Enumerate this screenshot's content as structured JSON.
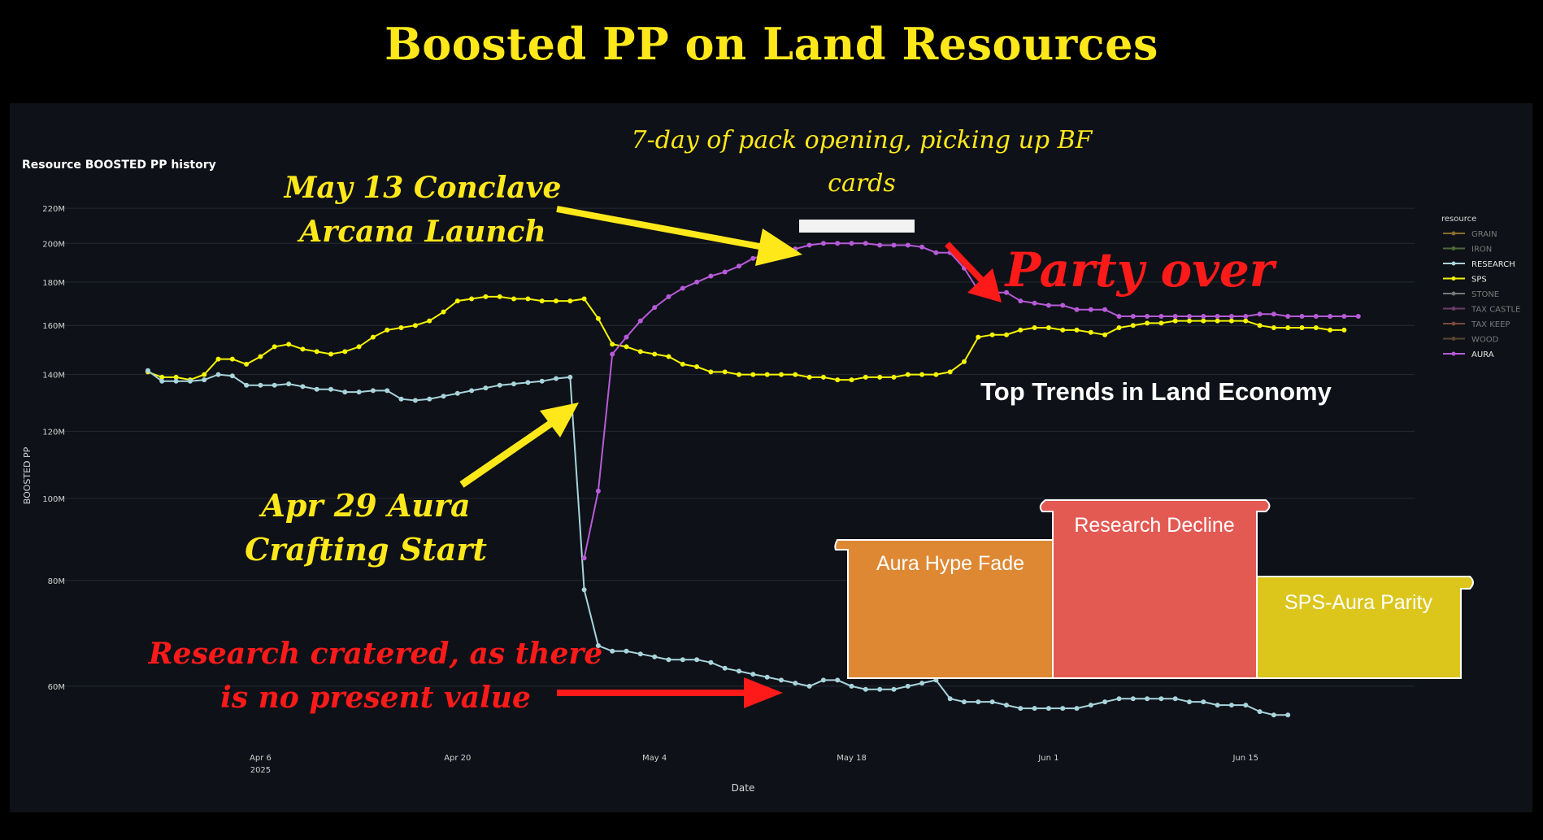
{
  "page": {
    "title": "Boosted PP on Land Resources"
  },
  "colors": {
    "page_bg": "#000000",
    "panel_bg": "#0e1117",
    "gridline": "#262a33",
    "title_yellow": "#ffe81a",
    "sps": "#f5f500",
    "research": "#a8d4dc",
    "aura": "#b65bd8",
    "annotation_red": "#ff1a1a"
  },
  "chart_data": {
    "type": "line",
    "title": "Resource BOOSTED PP history",
    "xlabel": "Date",
    "ylabel": "BOOSTED PP",
    "scale": "log",
    "yticks": [
      {
        "label": "60M",
        "value": 60
      },
      {
        "label": "80M",
        "value": 80
      },
      {
        "label": "100M",
        "value": 100
      },
      {
        "label": "120M",
        "value": 120
      },
      {
        "label": "140M",
        "value": 140
      },
      {
        "label": "160M",
        "value": 160
      },
      {
        "label": "180M",
        "value": 180
      },
      {
        "label": "200M",
        "value": 200
      },
      {
        "label": "220M",
        "value": 220
      }
    ],
    "xticks": [
      {
        "label": "Apr 6",
        "sub": "2025",
        "date": "2025-04-06"
      },
      {
        "label": "Apr 20",
        "sub": "",
        "date": "2025-04-20"
      },
      {
        "label": "May 4",
        "sub": "",
        "date": "2025-05-04"
      },
      {
        "label": "May 18",
        "sub": "",
        "date": "2025-05-18"
      },
      {
        "label": "Jun 1",
        "sub": "",
        "date": "2025-06-01"
      },
      {
        "label": "Jun 15",
        "sub": "",
        "date": "2025-06-15"
      }
    ],
    "x_range": [
      "2025-03-26",
      "2025-06-27"
    ],
    "y_range_millions": [
      53,
      228
    ],
    "grid": true,
    "legend_title": "resource",
    "legend_position": "right",
    "legend": [
      {
        "name": "GRAIN",
        "color": "#8a6d2b",
        "active": false
      },
      {
        "name": "IRON",
        "color": "#4d6a3a",
        "active": false
      },
      {
        "name": "RESEARCH",
        "color": "#a8d4dc",
        "active": true
      },
      {
        "name": "SPS",
        "color": "#f5f500",
        "active": true
      },
      {
        "name": "STONE",
        "color": "#777777",
        "active": false
      },
      {
        "name": "TAX CASTLE",
        "color": "#6a3d6a",
        "active": false
      },
      {
        "name": "TAX KEEP",
        "color": "#7a4a3a",
        "active": false
      },
      {
        "name": "WOOD",
        "color": "#5a4630",
        "active": false
      },
      {
        "name": "AURA",
        "color": "#b65bd8",
        "active": true
      }
    ],
    "series": [
      {
        "name": "SPS",
        "color": "#f5f500",
        "start_date": "2025-03-29",
        "values": [
          141,
          139,
          139,
          138,
          140,
          146,
          146,
          144,
          147,
          151,
          152,
          150,
          149,
          148,
          149,
          151,
          155,
          158,
          159,
          160,
          162,
          166,
          171,
          172,
          173,
          173,
          172,
          172,
          171,
          171,
          171,
          172,
          163,
          152,
          151,
          149,
          148,
          147,
          144,
          143,
          141,
          141,
          140,
          140,
          140,
          140,
          140,
          139,
          139,
          138,
          138,
          139,
          139,
          139,
          140,
          140,
          140,
          141,
          145,
          155,
          156,
          156,
          158,
          159,
          159,
          158,
          158,
          157,
          156,
          159,
          160,
          161,
          161,
          162,
          162,
          162,
          162,
          162,
          162,
          160,
          159,
          159,
          159,
          159,
          158,
          158
        ]
      },
      {
        "name": "RESEARCH",
        "color": "#a8d4dc",
        "start_date": "2025-03-29",
        "values": [
          141.5,
          137.5,
          137.5,
          137.5,
          138,
          140,
          139.5,
          136,
          136,
          136,
          136.5,
          135.5,
          134.5,
          134.5,
          133.5,
          133.5,
          134,
          134,
          131,
          130.5,
          131,
          132,
          133,
          134,
          135,
          136,
          136.5,
          137,
          137.5,
          138.5,
          139,
          78,
          67,
          66,
          66,
          65.5,
          65,
          64.5,
          64.5,
          64.5,
          64,
          63,
          62.5,
          62,
          61.5,
          61,
          60.5,
          60,
          61,
          61,
          60,
          59.5,
          59.5,
          59.5,
          60,
          60.5,
          61,
          58,
          57.5,
          57.5,
          57.5,
          57,
          56.5,
          56.5,
          56.5,
          56.5,
          56.5,
          57,
          57.5,
          58,
          58,
          58,
          58,
          58,
          57.5,
          57.5,
          57,
          57,
          57,
          56,
          55.5,
          55.5
        ]
      },
      {
        "name": "AURA",
        "color": "#b65bd8",
        "start_date": "2025-04-29",
        "values": [
          85,
          102,
          148,
          155,
          162,
          168,
          173,
          177,
          180,
          183,
          185,
          188,
          192,
          194,
          196,
          197,
          199,
          200,
          200,
          200,
          200,
          199,
          199,
          199,
          198,
          195,
          195,
          187,
          176,
          175,
          175,
          171,
          170,
          169,
          169,
          167,
          167,
          167,
          164,
          164,
          164,
          164,
          164,
          164,
          164,
          164,
          164,
          164,
          165,
          165,
          164,
          164,
          164,
          164,
          164,
          164
        ]
      }
    ]
  },
  "annotations": {
    "pack_opening_line1": "7-day of pack opening, picking up BF",
    "pack_opening_line2": "cards",
    "may13_line1": "May 13 Conclave",
    "may13_line2": "Arcana Launch",
    "party_over": "Party over",
    "apr29_line1": "Apr 29 Aura",
    "apr29_line2": "Crafting Start",
    "research_line1": "Research cratered, as there",
    "research_line2": "is no present value"
  },
  "trends": {
    "heading": "Top Trends in Land Economy",
    "items": [
      {
        "label": "Aura Hype Fade",
        "color": "#de8833"
      },
      {
        "label": "Research Decline",
        "color": "#e35a53"
      },
      {
        "label": "SPS-Aura Parity",
        "color": "#dcc61c"
      }
    ]
  }
}
